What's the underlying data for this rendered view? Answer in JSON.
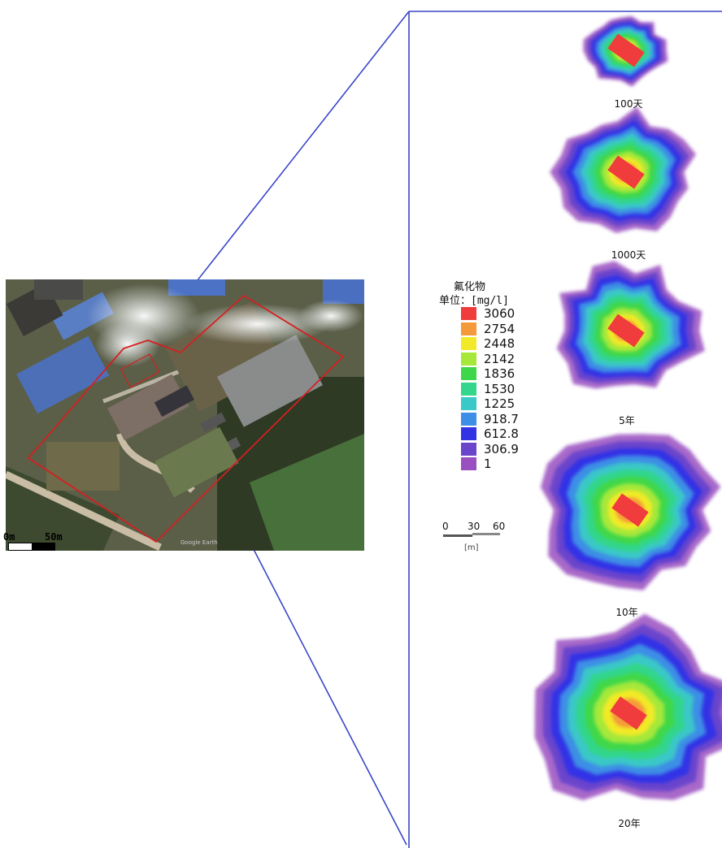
{
  "satellite_map": {
    "scale_labels": {
      "start": "0m",
      "end": "50m"
    },
    "overlay_text": "Google Earth"
  },
  "legend": {
    "title": "氟化物",
    "unit_label": "单位：[mg/l]",
    "entries": [
      {
        "value": "3060",
        "color": "#f03c3c"
      },
      {
        "value": "2754",
        "color": "#f59a3a"
      },
      {
        "value": "2448",
        "color": "#f2ea28"
      },
      {
        "value": "2142",
        "color": "#a6e83a"
      },
      {
        "value": "1836",
        "color": "#3fd74a"
      },
      {
        "value": "1530",
        "color": "#33d68a"
      },
      {
        "value": "1225",
        "color": "#3ac8c8"
      },
      {
        "value": "918.7",
        "color": "#3d8ee6"
      },
      {
        "value": "612.8",
        "color": "#3333e6"
      },
      {
        "value": "306.9",
        "color": "#6b44cc"
      },
      {
        "value": "1",
        "color": "#9a4fc0"
      }
    ]
  },
  "plume_scale": {
    "ticks": [
      "0",
      "30",
      "60"
    ],
    "unit": "[m]"
  },
  "plumes": [
    {
      "label": "100天",
      "extent": 0.18
    },
    {
      "label": "1000天",
      "extent": 0.55
    },
    {
      "label": "5年",
      "extent": 0.62
    },
    {
      "label": "10年",
      "extent": 0.8
    },
    {
      "label": "20年",
      "extent": 1.0
    }
  ],
  "colors": {
    "connector_line": "#3a46c8",
    "site_boundary": "#d42020"
  }
}
